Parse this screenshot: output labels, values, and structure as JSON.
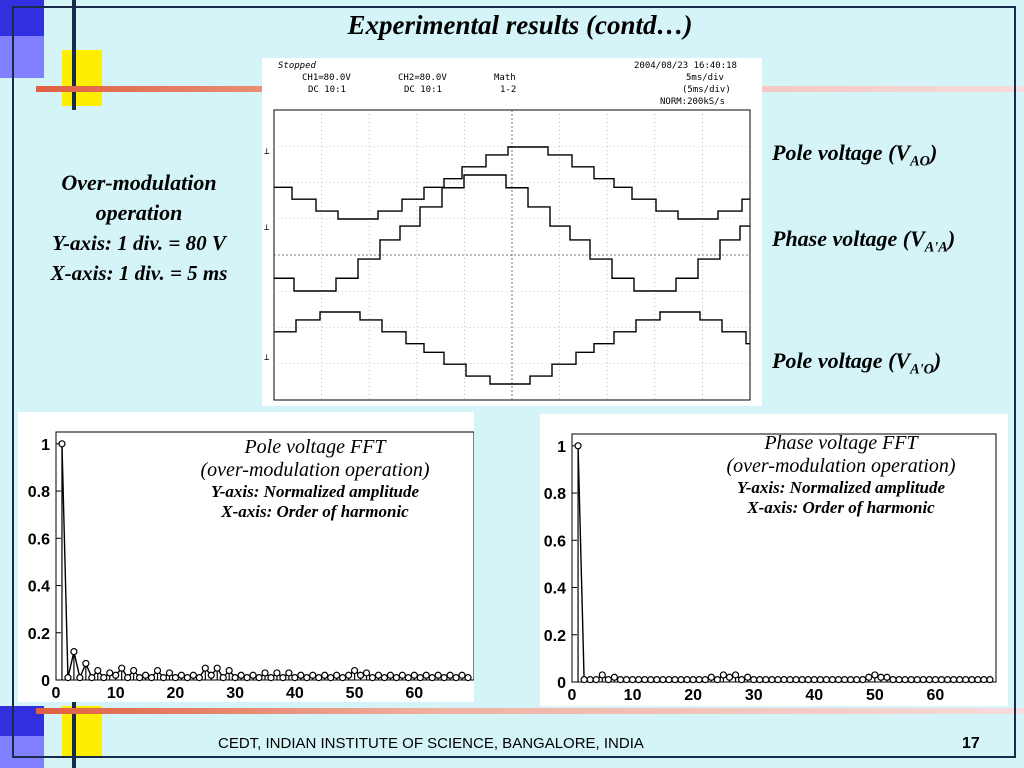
{
  "slide": {
    "title": "Experimental results (contd…)",
    "footer": "CEDT, INDIAN INSTITUTE OF SCIENCE, BANGALORE, INDIA",
    "page_number": "17",
    "colors": {
      "background": "#d4f4f8",
      "deco_yellow": "#ffee00",
      "deco_blue": "#3030e0",
      "deco_line": "#e06040"
    }
  },
  "left_note": {
    "line1": "Over-modulation",
    "line2": "operation",
    "line3": "Y-axis: 1 div. = 80 V",
    "line4": "X-axis: 1 div. = 5 ms"
  },
  "trace_labels": {
    "pole_vao": {
      "prefix": "Pole voltage (V",
      "sub": "AO",
      "suffix": ")"
    },
    "phase_vaa": {
      "prefix": "Phase voltage (V",
      "sub": "A'A",
      "suffix": ")"
    },
    "pole_vao2": {
      "prefix": "Pole voltage (V",
      "sub": "A'O",
      "suffix": ")"
    }
  },
  "scope": {
    "status": "Stopped",
    "timestamp": "2004/08/23  16:40:18",
    "ch1": "CH1=80.0V",
    "ch1_coupling": "DC  10:1",
    "ch2": "CH2=80.0V",
    "ch2_coupling": "DC  10:1",
    "math": "Math",
    "math_expr": "1-2",
    "timebase": "5ms/div",
    "timebase2": "(5ms/div)",
    "sample": "NORM:200kS/s"
  },
  "fft_left": {
    "title1": "Pole voltage FFT",
    "title2": "(over-modulation operation)",
    "title3": "Y-axis: Normalized amplitude",
    "title4": "X-axis: Order of harmonic"
  },
  "fft_right": {
    "title1": "Phase voltage FFT",
    "title2": "(over-modulation operation)",
    "title3": "Y-axis: Normalized amplitude",
    "title4": "X-axis: Order of harmonic"
  },
  "chart_data": [
    {
      "type": "line",
      "title": "",
      "xlabel": "",
      "ylabel": "",
      "description_units": "x in divisions (0-10), y in divisions (0-8)",
      "grid": true,
      "series": [
        {
          "name": "V_AO",
          "stroke": "#000"
        },
        {
          "name": "V_A'A",
          "stroke": "#000"
        },
        {
          "name": "V_A'O",
          "stroke": "#000"
        }
      ]
    },
    {
      "type": "bar",
      "title": "",
      "xlabel": "",
      "ylabel": "",
      "xticks": [
        "0",
        "10",
        "20",
        "30",
        "40",
        "50",
        "60"
      ],
      "yticks": [
        "0",
        "0.2",
        "0.4",
        "0.6",
        "0.8",
        "1"
      ],
      "xlim": [
        0,
        70
      ],
      "ylim": [
        0,
        1.05
      ],
      "x": [
        1,
        2,
        3,
        4,
        5,
        6,
        7,
        8,
        9,
        10,
        11,
        12,
        13,
        14,
        15,
        16,
        17,
        18,
        19,
        20,
        21,
        22,
        23,
        24,
        25,
        26,
        27,
        28,
        29,
        30,
        31,
        32,
        33,
        34,
        35,
        36,
        37,
        38,
        39,
        40,
        41,
        42,
        43,
        44,
        45,
        46,
        47,
        48,
        49,
        50,
        51,
        52,
        53,
        54,
        55,
        56,
        57,
        58,
        59,
        60,
        61,
        62,
        63,
        64,
        65,
        66,
        67,
        68,
        69
      ],
      "values": [
        1.0,
        0.01,
        0.12,
        0.01,
        0.07,
        0.01,
        0.04,
        0.01,
        0.03,
        0.02,
        0.05,
        0.01,
        0.04,
        0.01,
        0.02,
        0.01,
        0.04,
        0.01,
        0.03,
        0.01,
        0.02,
        0.01,
        0.02,
        0.01,
        0.05,
        0.02,
        0.05,
        0.01,
        0.04,
        0.01,
        0.02,
        0.01,
        0.02,
        0.01,
        0.03,
        0.01,
        0.03,
        0.01,
        0.03,
        0.01,
        0.02,
        0.01,
        0.02,
        0.01,
        0.02,
        0.01,
        0.02,
        0.01,
        0.02,
        0.04,
        0.02,
        0.03,
        0.01,
        0.02,
        0.01,
        0.02,
        0.01,
        0.02,
        0.01,
        0.02,
        0.01,
        0.02,
        0.01,
        0.02,
        0.01,
        0.02,
        0.01,
        0.02,
        0.01
      ]
    },
    {
      "type": "bar",
      "title": "",
      "xlabel": "",
      "ylabel": "",
      "xticks": [
        "0",
        "10",
        "20",
        "30",
        "40",
        "50",
        "60"
      ],
      "yticks": [
        "0",
        "0.2",
        "0.4",
        "0.6",
        "0.8",
        "1"
      ],
      "xlim": [
        0,
        70
      ],
      "ylim": [
        0,
        1.05
      ],
      "x": [
        1,
        2,
        3,
        4,
        5,
        6,
        7,
        8,
        9,
        10,
        11,
        12,
        13,
        14,
        15,
        16,
        17,
        18,
        19,
        20,
        21,
        22,
        23,
        24,
        25,
        26,
        27,
        28,
        29,
        30,
        31,
        32,
        33,
        34,
        35,
        36,
        37,
        38,
        39,
        40,
        41,
        42,
        43,
        44,
        45,
        46,
        47,
        48,
        49,
        50,
        51,
        52,
        53,
        54,
        55,
        56,
        57,
        58,
        59,
        60,
        61,
        62,
        63,
        64,
        65,
        66,
        67,
        68,
        69
      ],
      "values": [
        1.0,
        0.01,
        0.01,
        0.01,
        0.03,
        0.01,
        0.02,
        0.01,
        0.01,
        0.01,
        0.01,
        0.01,
        0.01,
        0.01,
        0.01,
        0.01,
        0.01,
        0.01,
        0.01,
        0.01,
        0.01,
        0.01,
        0.02,
        0.01,
        0.03,
        0.02,
        0.03,
        0.01,
        0.02,
        0.01,
        0.01,
        0.01,
        0.01,
        0.01,
        0.01,
        0.01,
        0.01,
        0.01,
        0.01,
        0.01,
        0.01,
        0.01,
        0.01,
        0.01,
        0.01,
        0.01,
        0.01,
        0.01,
        0.02,
        0.03,
        0.02,
        0.02,
        0.01,
        0.01,
        0.01,
        0.01,
        0.01,
        0.01,
        0.01,
        0.01,
        0.01,
        0.01,
        0.01,
        0.01,
        0.01,
        0.01,
        0.01,
        0.01,
        0.01
      ]
    }
  ]
}
